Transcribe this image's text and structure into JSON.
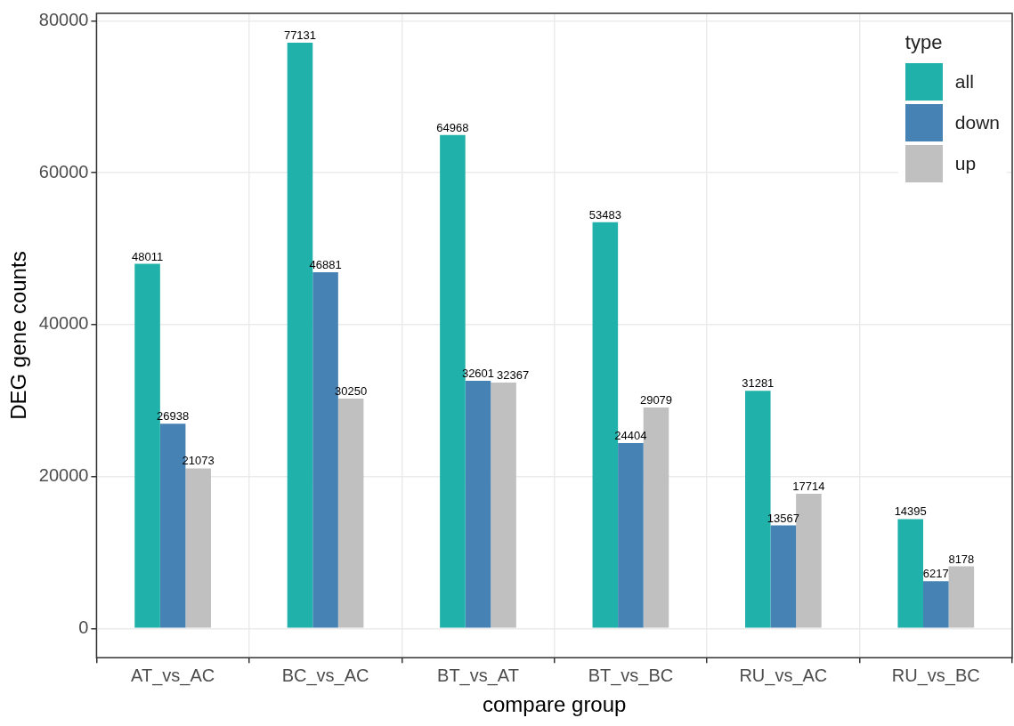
{
  "chart_data": {
    "type": "bar",
    "xlabel": "compare group",
    "ylabel": "DEG gene counts",
    "legend_title": "type",
    "categories": [
      "AT_vs_AC",
      "BC_vs_AC",
      "BT_vs_AT",
      "BT_vs_BC",
      "RU_vs_AC",
      "RU_vs_BC"
    ],
    "series": [
      {
        "name": "all",
        "color": "#20b2aa",
        "values": [
          48011,
          77131,
          64968,
          53483,
          31281,
          14395
        ]
      },
      {
        "name": "down",
        "color": "#4682b4",
        "values": [
          26938,
          46881,
          32601,
          24404,
          13567,
          6217
        ]
      },
      {
        "name": "up",
        "color": "#c0c0c0",
        "values": [
          21073,
          30250,
          32367,
          29079,
          17714,
          8178
        ]
      }
    ],
    "ylim": [
      -3857,
      80988
    ],
    "yticks": [
      0,
      20000,
      40000,
      60000,
      80000
    ],
    "grid": true,
    "legend": "top right",
    "data_labels": true
  }
}
